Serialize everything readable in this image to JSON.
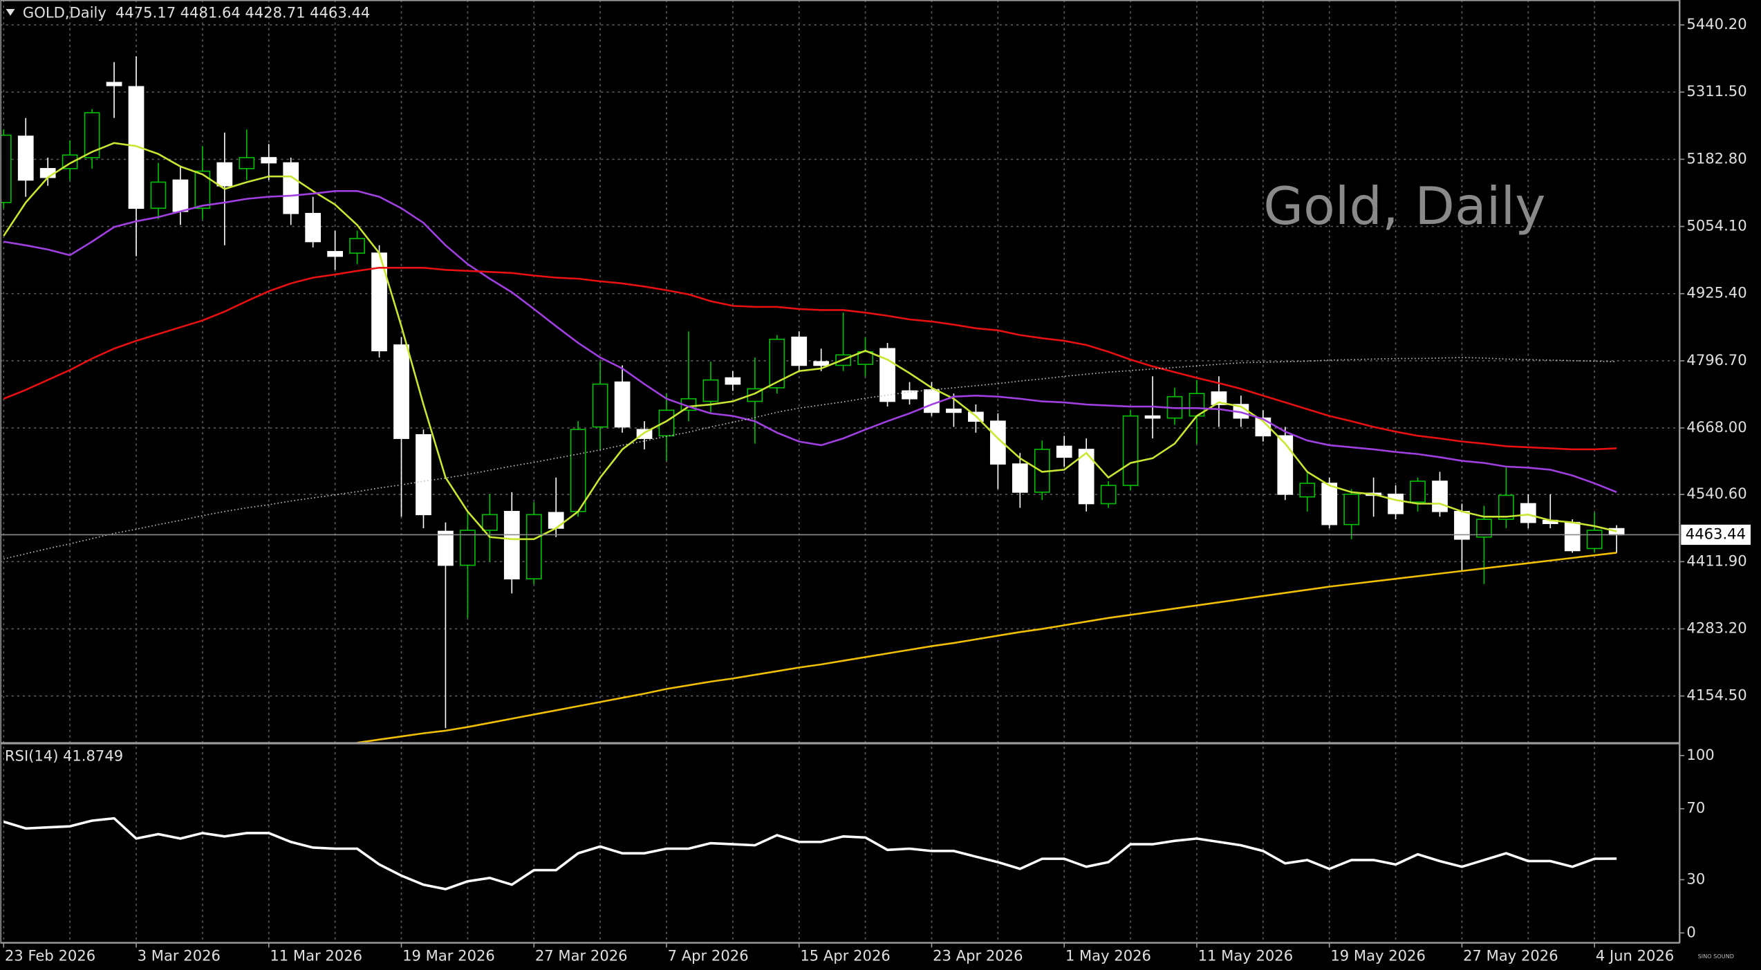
{
  "chart_data": {
    "type": "candlestick",
    "symbol": "GOLD,Daily",
    "watermark": "Gold, Daily",
    "logo": "SINO SOUND",
    "categories": [
      "23 Feb 2026",
      null,
      null,
      null,
      null,
      null,
      "3 Mar 2026",
      null,
      null,
      null,
      null,
      null,
      "11 Mar 2026",
      null,
      null,
      null,
      null,
      null,
      "19 Mar 2026",
      null,
      null,
      null,
      null,
      null,
      "27 Mar 2026",
      null,
      null,
      null,
      null,
      null,
      "7 Apr 2026",
      null,
      null,
      null,
      null,
      null,
      "15 Apr 2026",
      null,
      null,
      null,
      null,
      null,
      "23 Apr 2026",
      null,
      null,
      null,
      null,
      null,
      "1 May 2026",
      null,
      null,
      null,
      null,
      null,
      "11 May 2026",
      null,
      null,
      null,
      null,
      null,
      "19 May 2026",
      null,
      null,
      null,
      null,
      null,
      "27 May 2026",
      null,
      null,
      null,
      null,
      null,
      "4 Jun 2026",
      null
    ],
    "open": [
      5100,
      5227,
      5165,
      5165,
      5186,
      5330,
      5322,
      5089,
      5143,
      5089,
      5176,
      5165,
      5186,
      5176,
      5079,
      5006,
      5003,
      5003,
      4827,
      4655,
      4470,
      4405,
      4472,
      4508,
      4379,
      4506,
      4508,
      4670,
      4756,
      4665,
      4653,
      4702,
      4719,
      4764,
      4719,
      4745,
      4842,
      4795,
      4788,
      4790,
      4820,
      4739,
      4741,
      4704,
      4698,
      4681,
      4599,
      4545,
      4633,
      4627,
      4523,
      4558,
      4691,
      4687,
      4691,
      4737,
      4713,
      4687,
      4653,
      4536,
      4562,
      4483,
      4543,
      4541,
      4526,
      4566,
      4508,
      4459,
      4493,
      4523,
      4491,
      4487,
      4437,
      4475.17
    ],
    "high": [
      5240,
      5262,
      5186,
      5219,
      5279,
      5369,
      5380,
      5176,
      5169,
      5208,
      5234,
      5240,
      5212,
      5186,
      5111,
      5046,
      5046,
      5018,
      4842,
      4665,
      4487,
      4508,
      4541,
      4545,
      4526,
      4573,
      4681,
      4795,
      4788,
      4681,
      4734,
      4853,
      4795,
      4777,
      4803,
      4846,
      4853,
      4820,
      4889,
      4842,
      4831,
      4756,
      4756,
      4734,
      4713,
      4696,
      4620,
      4644,
      4653,
      4648,
      4566,
      4702,
      4767,
      4745,
      4760,
      4767,
      4730,
      4702,
      4670,
      4584,
      4573,
      4551,
      4573,
      4558,
      4573,
      4584,
      4523,
      4519,
      4594,
      4541,
      4541,
      4493,
      4506,
      4481.64
    ],
    "low": [
      5089,
      5111,
      5132,
      5143,
      5165,
      5262,
      4997,
      5068,
      5057,
      5068,
      5018,
      5143,
      5143,
      5057,
      5014,
      4971,
      4982,
      4803,
      4498,
      4476,
      4093,
      4304,
      4412,
      4351,
      4369,
      4459,
      4498,
      4627,
      4659,
      4627,
      4605,
      4681,
      4696,
      4739,
      4638,
      4734,
      4777,
      4777,
      4777,
      4767,
      4709,
      4713,
      4691,
      4670,
      4659,
      4551,
      4515,
      4530,
      4594,
      4508,
      4515,
      4549,
      4648,
      4674,
      4638,
      4670,
      4670,
      4642,
      4530,
      4508,
      4476,
      4455,
      4498,
      4493,
      4508,
      4498,
      4394,
      4369,
      4476,
      4476,
      4476,
      4429,
      4429,
      4428.71
    ],
    "close": [
      5229,
      5143,
      5148,
      5191,
      5272,
      5324,
      5089,
      5139,
      5083,
      5160,
      5132,
      5186,
      5176,
      5079,
      5025,
      4997,
      5031,
      4816,
      4648,
      4502,
      4405,
      4472,
      4502,
      4379,
      4502,
      4476,
      4665,
      4752,
      4670,
      4648,
      4702,
      4724,
      4760,
      4752,
      4743,
      4838,
      4788,
      4788,
      4808,
      4814,
      4719,
      4724,
      4698,
      4698,
      4681,
      4599,
      4545,
      4627,
      4612,
      4523,
      4558,
      4691,
      4687,
      4728,
      4734,
      4713,
      4687,
      4653,
      4541,
      4562,
      4483,
      4541,
      4539,
      4504,
      4566,
      4508,
      4455,
      4493,
      4539,
      4487,
      4485,
      4433,
      4472,
      4463.44
    ],
    "up_color": "#00c000",
    "down_color": "#ffffff",
    "ylim": [
      4064,
      5488
    ],
    "yticks": [
      {
        "value": 5440.2,
        "label": "5440.20"
      },
      {
        "value": 5311.5,
        "label": "5311.50"
      },
      {
        "value": 5182.8,
        "label": "5182.80"
      },
      {
        "value": 5054.1,
        "label": "5054.10"
      },
      {
        "value": 4925.4,
        "label": "4925.40"
      },
      {
        "value": 4796.7,
        "label": "4796.70"
      },
      {
        "value": 4668,
        "label": "4668.00"
      },
      {
        "value": 4540.6,
        "label": "4540.60"
      },
      {
        "value": 4411.9,
        "label": "4411.90"
      },
      {
        "value": 4283.2,
        "label": "4283.20"
      },
      {
        "value": 4154.5,
        "label": "4154.50"
      }
    ],
    "grid": true,
    "current_price_line": true,
    "overlays": [
      {
        "color": "#c8e632",
        "style": "solid",
        "values": [
          5036,
          5100,
          5148,
          5175,
          5197,
          5214,
          5208,
          5193,
          5169,
          5154,
          5126,
          5139,
          5150,
          5150,
          5122,
          5096,
          5057,
          5003,
          4863,
          4713,
          4573,
          4508,
          4459,
          4455,
          4455,
          4476,
          4508,
          4573,
          4627,
          4659,
          4681,
          4709,
          4713,
          4719,
          4734,
          4756,
          4777,
          4782,
          4799,
          4816,
          4799,
          4773,
          4745,
          4724,
          4691,
          4648,
          4610,
          4584,
          4588,
          4620,
          4573,
          4601,
          4610,
          4638,
          4691,
          4717,
          4709,
          4681,
          4638,
          4584,
          4558,
          4545,
          4541,
          4530,
          4523,
          4523,
          4508,
          4498,
          4498,
          4502,
          4491,
          4487,
          4480,
          4470
        ]
      },
      {
        "color": "#a040e0",
        "style": "solid",
        "values": [
          5025,
          5018,
          5010,
          4999,
          5025,
          5053,
          5064,
          5072,
          5083,
          5094,
          5100,
          5107,
          5111,
          5113,
          5117,
          5122,
          5122,
          5111,
          5089,
          5061,
          5018,
          4982,
          4954,
          4928,
          4896,
          4863,
          4831,
          4803,
          4782,
          4752,
          4724,
          4709,
          4696,
          4691,
          4681,
          4659,
          4642,
          4635,
          4648,
          4665,
          4681,
          4696,
          4713,
          4728,
          4730,
          4728,
          4724,
          4719,
          4717,
          4713,
          4711,
          4709,
          4709,
          4706,
          4706,
          4704,
          4698,
          4685,
          4661,
          4644,
          4635,
          4631,
          4627,
          4622,
          4618,
          4612,
          4605,
          4601,
          4594,
          4592,
          4588,
          4577,
          4562,
          4545
        ]
      },
      {
        "color": "#e81010",
        "style": "solid",
        "values": [
          4724,
          4741,
          4760,
          4779,
          4801,
          4820,
          4835,
          4848,
          4861,
          4874,
          4891,
          4911,
          4930,
          4945,
          4956,
          4962,
          4969,
          4975,
          4975,
          4975,
          4971,
          4969,
          4967,
          4965,
          4960,
          4956,
          4954,
          4949,
          4945,
          4939,
          4932,
          4924,
          4911,
          4902,
          4900,
          4900,
          4896,
          4894,
          4894,
          4889,
          4883,
          4876,
          4872,
          4866,
          4859,
          4855,
          4846,
          4840,
          4835,
          4827,
          4814,
          4799,
          4786,
          4775,
          4764,
          4754,
          4743,
          4730,
          4717,
          4704,
          4691,
          4681,
          4670,
          4661,
          4653,
          4648,
          4642,
          4638,
          4633,
          4631,
          4629,
          4627,
          4627,
          4629
        ]
      },
      {
        "color": "#c0c0c0",
        "style": "dotted",
        "values": [
          4417,
          4427,
          4437,
          4446,
          4456,
          4466,
          4474,
          4483,
          4491,
          4500,
          4508,
          4515,
          4521,
          4528,
          4534,
          4540,
          4546,
          4553,
          4559,
          4566,
          4572,
          4579,
          4587,
          4595,
          4602,
          4610,
          4618,
          4626,
          4635,
          4643,
          4652,
          4660,
          4670,
          4679,
          4688,
          4698,
          4706,
          4712,
          4718,
          4725,
          4731,
          4737,
          4741,
          4745,
          4749,
          4753,
          4758,
          4762,
          4767,
          4771,
          4775,
          4778,
          4781,
          4784,
          4787,
          4790,
          4793,
          4794,
          4795,
          4796,
          4798,
          4799,
          4800,
          4801,
          4801,
          4802,
          4803,
          4802,
          4800,
          4799,
          4798,
          4797,
          4796,
          4795
        ]
      },
      {
        "color": "#f0c000",
        "style": "solid",
        "values": [
          null,
          null,
          null,
          null,
          null,
          null,
          null,
          null,
          null,
          null,
          null,
          null,
          null,
          null,
          null,
          null,
          4065,
          4071,
          4077,
          4083,
          4088,
          4095,
          4103,
          4111,
          4119,
          4127,
          4135,
          4143,
          4151,
          4159,
          4168,
          4175,
          4182,
          4188,
          4195,
          4202,
          4209,
          4215,
          4222,
          4229,
          4236,
          4243,
          4250,
          4256,
          4263,
          4270,
          4277,
          4283,
          4290,
          4297,
          4304,
          4310,
          4316,
          4322,
          4328,
          4334,
          4340,
          4346,
          4352,
          4358,
          4364,
          4369,
          4374,
          4379,
          4384,
          4389,
          4394,
          4399,
          4404,
          4409,
          4414,
          4419,
          4424,
          4429
        ]
      }
    ],
    "indicator": {
      "type": "line",
      "label": "RSI(14)",
      "current": 41.8749,
      "color": "#ffffff",
      "ylim": [
        -5.7,
        106.3
      ],
      "yticks": [
        0,
        30,
        70,
        100
      ],
      "values": [
        62.7,
        58.9,
        59.5,
        60.1,
        63.3,
        64.6,
        53.2,
        55.7,
        53.2,
        56.3,
        54.4,
        56.3,
        56.3,
        51.3,
        48.1,
        47.5,
        47.5,
        38.6,
        32.3,
        27.2,
        24.7,
        29.1,
        31.0,
        27.2,
        35.4,
        35.4,
        44.9,
        48.7,
        44.9,
        44.9,
        47.5,
        47.5,
        50.6,
        50.0,
        49.4,
        55.1,
        51.3,
        51.3,
        54.4,
        53.8,
        46.8,
        47.5,
        46.2,
        46.2,
        43.0,
        39.9,
        36.1,
        41.8,
        41.8,
        37.3,
        39.9,
        50.0,
        50.0,
        51.9,
        53.2,
        51.3,
        49.4,
        46.2,
        39.2,
        41.1,
        36.1,
        41.1,
        41.1,
        38.6,
        44.3,
        40.5,
        37.3,
        41.1,
        44.9,
        40.5,
        40.5,
        37.3,
        41.8,
        41.87
      ]
    }
  }
}
